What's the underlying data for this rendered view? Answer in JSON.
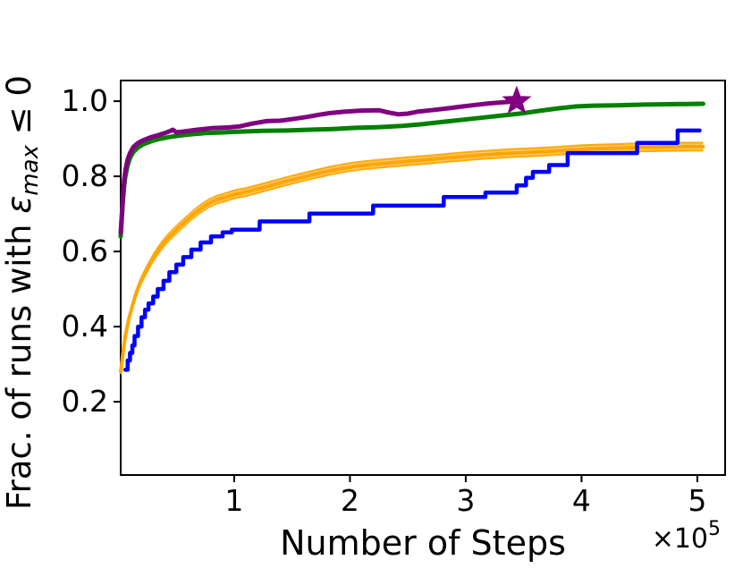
{
  "figure": {
    "background": "#ffffff",
    "axis_color": "#000000"
  },
  "chart_data": {
    "type": "line",
    "xlabel": "Number of Steps",
    "ylabel_parts": {
      "prefix": "Frac. of runs with ",
      "symbol": "ε",
      "subscript": "max",
      "suffix": " ≤ 0"
    },
    "x_offset_base": "×10",
    "x_offset_exp": "5",
    "x_unit": 100000,
    "xlim": [
      0.02,
      5.24
    ],
    "ylim": [
      0.005,
      1.055
    ],
    "grid": false,
    "legend": "none",
    "xticks": [
      {
        "v": 1,
        "label": "1"
      },
      {
        "v": 2,
        "label": "2"
      },
      {
        "v": 3,
        "label": "3"
      },
      {
        "v": 4,
        "label": "4"
      },
      {
        "v": 5,
        "label": "5"
      }
    ],
    "yticks": [
      {
        "v": 0.2,
        "label": "0.2"
      },
      {
        "v": 0.4,
        "label": "0.4"
      },
      {
        "v": 0.6,
        "label": "0.6"
      },
      {
        "v": 0.8,
        "label": "0.8"
      },
      {
        "v": 1.0,
        "label": "1.0"
      }
    ],
    "series": [
      {
        "name": "orange-band-run",
        "color": "#FFA500",
        "streak_color": "#FFD27F",
        "width": 4,
        "band": 0.013,
        "points": [
          [
            0.02,
            0.28
          ],
          [
            0.04,
            0.33
          ],
          [
            0.06,
            0.375
          ],
          [
            0.09,
            0.42
          ],
          [
            0.12,
            0.455
          ],
          [
            0.16,
            0.495
          ],
          [
            0.2,
            0.525
          ],
          [
            0.25,
            0.555
          ],
          [
            0.3,
            0.583
          ],
          [
            0.36,
            0.61
          ],
          [
            0.42,
            0.633
          ],
          [
            0.48,
            0.652
          ],
          [
            0.55,
            0.672
          ],
          [
            0.62,
            0.692
          ],
          [
            0.7,
            0.712
          ],
          [
            0.78,
            0.728
          ],
          [
            0.85,
            0.738
          ],
          [
            0.93,
            0.745
          ],
          [
            1.0,
            0.752
          ],
          [
            1.1,
            0.758
          ],
          [
            1.2,
            0.766
          ],
          [
            1.32,
            0.776
          ],
          [
            1.45,
            0.787
          ],
          [
            1.58,
            0.797
          ],
          [
            1.7,
            0.806
          ],
          [
            1.83,
            0.815
          ],
          [
            1.95,
            0.822
          ],
          [
            2.08,
            0.828
          ],
          [
            2.2,
            0.832
          ],
          [
            2.35,
            0.836
          ],
          [
            2.5,
            0.84
          ],
          [
            2.65,
            0.844
          ],
          [
            2.8,
            0.848
          ],
          [
            2.95,
            0.852
          ],
          [
            3.1,
            0.856
          ],
          [
            3.25,
            0.859
          ],
          [
            3.4,
            0.862
          ],
          [
            3.55,
            0.864
          ],
          [
            3.7,
            0.866
          ],
          [
            3.85,
            0.869
          ],
          [
            4.0,
            0.872
          ],
          [
            4.15,
            0.874
          ],
          [
            4.3,
            0.875
          ],
          [
            4.5,
            0.877
          ],
          [
            4.7,
            0.878
          ],
          [
            4.9,
            0.879
          ],
          [
            5.05,
            0.879
          ]
        ]
      },
      {
        "name": "blue-step-run",
        "color": "#0000FF",
        "width": 4.5,
        "step": true,
        "points": [
          [
            0.06,
            0.285
          ],
          [
            0.08,
            0.31
          ],
          [
            0.1,
            0.33
          ],
          [
            0.12,
            0.35
          ],
          [
            0.14,
            0.375
          ],
          [
            0.17,
            0.4
          ],
          [
            0.2,
            0.425
          ],
          [
            0.23,
            0.445
          ],
          [
            0.26,
            0.462
          ],
          [
            0.3,
            0.48
          ],
          [
            0.34,
            0.5
          ],
          [
            0.39,
            0.522
          ],
          [
            0.44,
            0.545
          ],
          [
            0.5,
            0.565
          ],
          [
            0.56,
            0.585
          ],
          [
            0.63,
            0.605
          ],
          [
            0.71,
            0.624
          ],
          [
            0.8,
            0.64
          ],
          [
            0.9,
            0.651
          ],
          [
            0.98,
            0.658
          ],
          [
            1.22,
            0.68
          ],
          [
            1.65,
            0.701
          ],
          [
            2.2,
            0.722
          ],
          [
            2.81,
            0.745
          ],
          [
            3.17,
            0.757
          ],
          [
            3.44,
            0.776
          ],
          [
            3.52,
            0.796
          ],
          [
            3.58,
            0.812
          ],
          [
            3.72,
            0.83
          ],
          [
            3.88,
            0.862
          ],
          [
            4.48,
            0.889
          ],
          [
            4.83,
            0.922
          ],
          [
            5.02,
            0.922
          ]
        ]
      },
      {
        "name": "green-run",
        "color": "#008000",
        "width": 5,
        "points": [
          [
            0.02,
            0.64
          ],
          [
            0.03,
            0.69
          ],
          [
            0.04,
            0.74
          ],
          [
            0.05,
            0.775
          ],
          [
            0.06,
            0.8
          ],
          [
            0.08,
            0.83
          ],
          [
            0.1,
            0.849
          ],
          [
            0.13,
            0.865
          ],
          [
            0.17,
            0.877
          ],
          [
            0.22,
            0.886
          ],
          [
            0.28,
            0.893
          ],
          [
            0.35,
            0.899
          ],
          [
            0.43,
            0.904
          ],
          [
            0.52,
            0.908
          ],
          [
            0.63,
            0.912
          ],
          [
            0.75,
            0.915
          ],
          [
            0.9,
            0.917
          ],
          [
            1.05,
            0.919
          ],
          [
            1.25,
            0.921
          ],
          [
            1.45,
            0.922
          ],
          [
            1.65,
            0.924
          ],
          [
            1.85,
            0.926
          ],
          [
            2.05,
            0.929
          ],
          [
            2.25,
            0.931
          ],
          [
            2.45,
            0.934
          ],
          [
            2.6,
            0.938
          ],
          [
            2.75,
            0.943
          ],
          [
            2.9,
            0.948
          ],
          [
            3.05,
            0.953
          ],
          [
            3.2,
            0.958
          ],
          [
            3.35,
            0.963
          ],
          [
            3.5,
            0.968
          ],
          [
            3.65,
            0.975
          ],
          [
            3.8,
            0.981
          ],
          [
            3.95,
            0.986
          ],
          [
            4.1,
            0.988
          ],
          [
            4.3,
            0.989
          ],
          [
            4.55,
            0.991
          ],
          [
            4.75,
            0.992
          ],
          [
            5.05,
            0.993
          ]
        ]
      },
      {
        "name": "purple-star-run",
        "color": "#800080",
        "width": 5,
        "marker_end": {
          "shape": "star",
          "size": 16,
          "inner_ratio": 0.42
        },
        "points": [
          [
            0.02,
            0.65
          ],
          [
            0.03,
            0.7
          ],
          [
            0.04,
            0.75
          ],
          [
            0.05,
            0.79
          ],
          [
            0.06,
            0.815
          ],
          [
            0.08,
            0.845
          ],
          [
            0.1,
            0.862
          ],
          [
            0.13,
            0.878
          ],
          [
            0.17,
            0.889
          ],
          [
            0.22,
            0.897
          ],
          [
            0.28,
            0.904
          ],
          [
            0.34,
            0.909
          ],
          [
            0.4,
            0.915
          ],
          [
            0.45,
            0.921
          ],
          [
            0.47,
            0.924
          ],
          [
            0.5,
            0.917
          ],
          [
            0.58,
            0.92
          ],
          [
            0.68,
            0.924
          ],
          [
            0.8,
            0.928
          ],
          [
            0.95,
            0.93
          ],
          [
            1.05,
            0.933
          ],
          [
            1.15,
            0.94
          ],
          [
            1.28,
            0.947
          ],
          [
            1.4,
            0.948
          ],
          [
            1.52,
            0.953
          ],
          [
            1.63,
            0.958
          ],
          [
            1.72,
            0.963
          ],
          [
            1.82,
            0.968
          ],
          [
            1.95,
            0.972
          ],
          [
            2.1,
            0.975
          ],
          [
            2.25,
            0.976
          ],
          [
            2.33,
            0.97
          ],
          [
            2.42,
            0.965
          ],
          [
            2.5,
            0.967
          ],
          [
            2.58,
            0.972
          ],
          [
            2.7,
            0.976
          ],
          [
            2.82,
            0.98
          ],
          [
            2.95,
            0.985
          ],
          [
            3.08,
            0.99
          ],
          [
            3.2,
            0.994
          ],
          [
            3.32,
            0.997
          ],
          [
            3.44,
            1.0
          ]
        ]
      }
    ]
  }
}
